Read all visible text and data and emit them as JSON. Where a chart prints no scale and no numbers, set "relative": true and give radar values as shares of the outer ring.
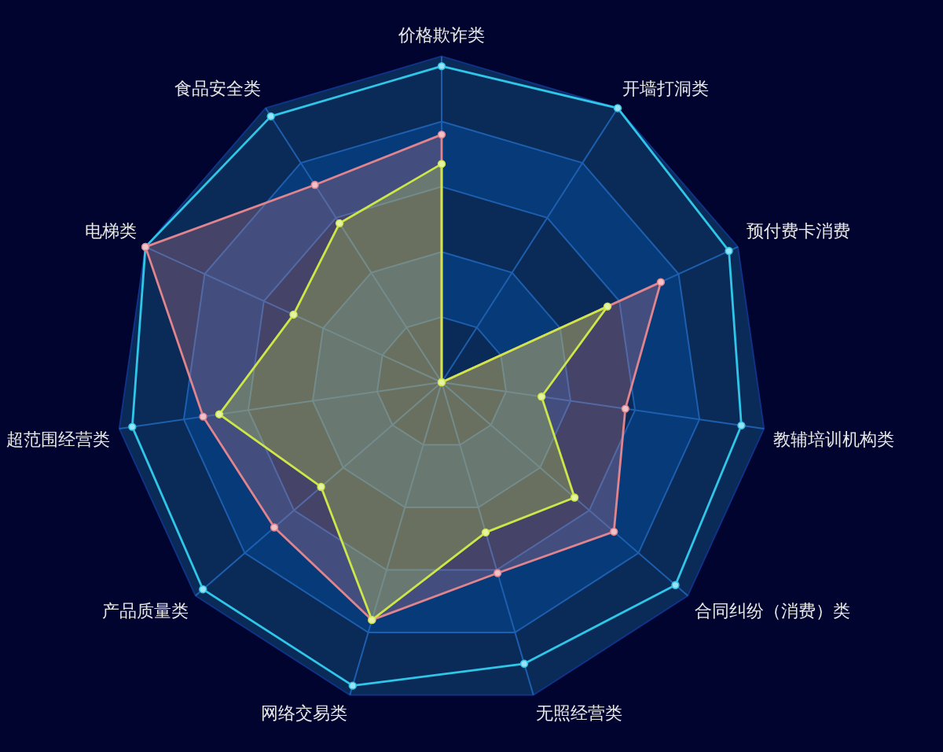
{
  "chart_data": {
    "type": "radar",
    "relative": true,
    "grid": true,
    "marker": "circle",
    "categories": [
      "价格欺诈类",
      "开墙打洞类",
      "预付费卡消费",
      "教辅培训机构类",
      "合同纠纷（消费）类",
      "无照经营类",
      "网络交易类",
      "产品质量类",
      "超范围经营类",
      "电梯类",
      "食品安全类"
    ],
    "series": [
      {
        "color": "#2fc6e8",
        "values": [
          0.97,
          1.0,
          0.97,
          0.93,
          0.95,
          0.9,
          0.97,
          0.97,
          0.96,
          1.0,
          0.97
        ]
      },
      {
        "color": "#e0848e",
        "values": [
          0.76,
          0,
          0.74,
          0.57,
          0.7,
          0.61,
          0.76,
          0.68,
          0.74,
          1.0,
          0.72
        ]
      },
      {
        "color": "#cde64a",
        "values": [
          0.67,
          0,
          0.56,
          0.31,
          0.54,
          0.48,
          0.76,
          0.49,
          0.69,
          0.5,
          0.58
        ]
      }
    ]
  }
}
